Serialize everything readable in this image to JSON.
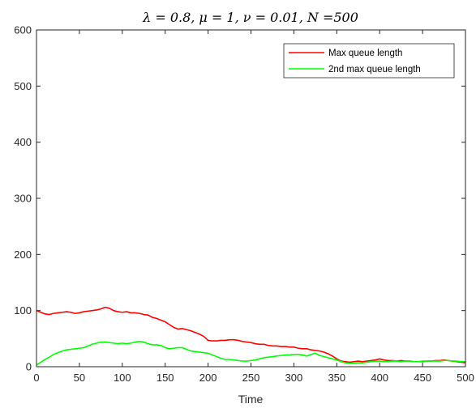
{
  "chart_data": {
    "type": "line",
    "title": "λ = 0.8, μ = 1, ν = 0.01, N =500",
    "xlabel": "Time",
    "ylabel": "",
    "xlim": [
      0,
      500
    ],
    "ylim": [
      0,
      600
    ],
    "xticks": [
      0,
      50,
      100,
      150,
      200,
      250,
      300,
      350,
      400,
      450,
      500
    ],
    "yticks": [
      0,
      100,
      200,
      300,
      400,
      500,
      600
    ],
    "grid": false,
    "legend_position": "top-right",
    "series": [
      {
        "name": "Max queue length",
        "color": "#ff0000",
        "x": [
          0,
          5,
          10,
          15,
          20,
          25,
          30,
          35,
          40,
          45,
          50,
          55,
          60,
          65,
          70,
          75,
          80,
          85,
          90,
          95,
          100,
          105,
          110,
          115,
          120,
          125,
          130,
          135,
          140,
          145,
          150,
          155,
          160,
          165,
          170,
          175,
          180,
          185,
          190,
          195,
          200,
          205,
          210,
          215,
          220,
          225,
          230,
          235,
          240,
          245,
          250,
          255,
          260,
          265,
          270,
          275,
          280,
          285,
          290,
          295,
          300,
          305,
          310,
          315,
          320,
          325,
          330,
          335,
          340,
          345,
          350,
          355,
          360,
          365,
          370,
          375,
          380,
          385,
          390,
          395,
          400,
          405,
          410,
          415,
          420,
          425,
          430,
          435,
          440,
          445,
          450,
          455,
          460,
          465,
          470,
          475,
          480,
          485,
          490,
          495,
          500
        ],
        "y": [
          100,
          97,
          94,
          93,
          95,
          96,
          97,
          98,
          97,
          95,
          96,
          98,
          99,
          100,
          101,
          103,
          106,
          104,
          100,
          98,
          97,
          98,
          96,
          96,
          95,
          93,
          92,
          88,
          86,
          83,
          80,
          75,
          70,
          67,
          68,
          66,
          64,
          61,
          58,
          54,
          47,
          46,
          46,
          47,
          47,
          48,
          48,
          47,
          45,
          44,
          43,
          41,
          40,
          40,
          38,
          37,
          37,
          36,
          36,
          35,
          35,
          33,
          32,
          32,
          30,
          29,
          28,
          26,
          23,
          19,
          14,
          10,
          9,
          8,
          9,
          10,
          9,
          10,
          11,
          12,
          14,
          12,
          11,
          11,
          10,
          11,
          10,
          10,
          9,
          9,
          9,
          10,
          10,
          11,
          11,
          12,
          11,
          10,
          9,
          8,
          7
        ]
      },
      {
        "name": "2nd max queue length",
        "color": "#00ff00",
        "x": [
          0,
          5,
          10,
          15,
          20,
          25,
          30,
          35,
          40,
          45,
          50,
          55,
          60,
          65,
          70,
          75,
          80,
          85,
          90,
          95,
          100,
          105,
          110,
          115,
          120,
          125,
          130,
          135,
          140,
          145,
          150,
          155,
          160,
          165,
          170,
          175,
          180,
          185,
          190,
          195,
          200,
          205,
          210,
          215,
          220,
          225,
          230,
          235,
          240,
          245,
          250,
          255,
          260,
          265,
          270,
          275,
          280,
          285,
          290,
          295,
          300,
          305,
          310,
          315,
          320,
          325,
          330,
          335,
          340,
          345,
          350,
          355,
          360,
          365,
          370,
          375,
          380,
          385,
          390,
          395,
          400,
          405,
          410,
          415,
          420,
          425,
          430,
          435,
          440,
          445,
          450,
          455,
          460,
          465,
          470,
          475,
          480,
          485,
          490,
          495,
          500
        ],
        "y": [
          3,
          8,
          13,
          17,
          22,
          25,
          28,
          30,
          31,
          32,
          33,
          34,
          37,
          40,
          42,
          44,
          44,
          43,
          42,
          41,
          42,
          41,
          42,
          44,
          45,
          44,
          41,
          39,
          39,
          38,
          34,
          32,
          33,
          34,
          34,
          31,
          28,
          27,
          26,
          25,
          24,
          21,
          18,
          15,
          13,
          13,
          12,
          11,
          10,
          10,
          11,
          12,
          14,
          16,
          17,
          18,
          19,
          20,
          21,
          21,
          22,
          22,
          21,
          19,
          22,
          24,
          20,
          18,
          16,
          14,
          12,
          9,
          7,
          6,
          6,
          7,
          7,
          8,
          9,
          10,
          10,
          9,
          9,
          10,
          10,
          9,
          10,
          10,
          9,
          9,
          10,
          10,
          10,
          10,
          10,
          11,
          11,
          10,
          10,
          9,
          9
        ]
      }
    ]
  }
}
